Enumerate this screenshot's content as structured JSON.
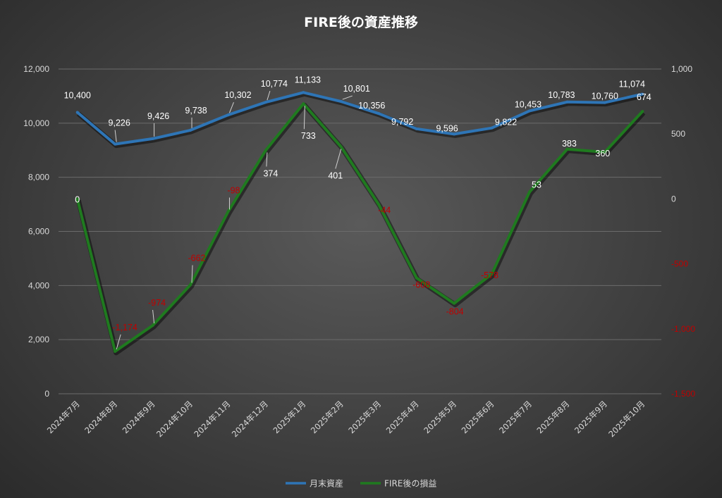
{
  "chart_data": {
    "type": "line",
    "title": "FIRE後の資産推移",
    "categories": [
      "2024年7月",
      "2024年8月",
      "2024年9月",
      "2024年10月",
      "2024年11月",
      "2024年12月",
      "2025年1月",
      "2025年2月",
      "2025年3月",
      "2025年4月",
      "2025年5月",
      "2025年6月",
      "2025年7月",
      "2025年8月",
      "2025年9月",
      "2025年10月"
    ],
    "series": [
      {
        "name": "月末資産",
        "axis": "left",
        "color": "#2e75b6",
        "values": [
          10400,
          9226,
          9426,
          9738,
          10302,
          10774,
          11133,
          10801,
          10356,
          9792,
          9596,
          9822,
          10453,
          10783,
          10760,
          11074
        ],
        "labels": [
          "10,400",
          "9,226",
          "9,426",
          "9,738",
          "10,302",
          "10,774",
          "11,133",
          "10,801",
          "10,356",
          "9,792",
          "9,596",
          "9,822",
          "10,453",
          "10,783",
          "10,760",
          "11,074"
        ]
      },
      {
        "name": "FIRE後の損益",
        "axis": "right",
        "color": "#1f7a1f",
        "values": [
          0,
          -1174,
          -974,
          -662,
          -98,
          374,
          733,
          401,
          -44,
          -608,
          -804,
          -578,
          53,
          383,
          360,
          674
        ],
        "labels": [
          "0",
          "-1,174",
          "-974",
          "-662",
          "-98",
          "374",
          "733",
          "401",
          "-44",
          "-608",
          "-804",
          "-578",
          "53",
          "383",
          "360",
          "674"
        ]
      }
    ],
    "left_axis": {
      "min": 0,
      "max": 12000,
      "ticks": [
        "0",
        "2,000",
        "4,000",
        "6,000",
        "8,000",
        "10,000",
        "12,000"
      ]
    },
    "right_axis": {
      "min": -1500,
      "max": 1000,
      "ticks": [
        "-1,500",
        "-1,000",
        "-500",
        "0",
        "500",
        "1,000"
      ]
    },
    "grid": true,
    "legend_position": "bottom"
  }
}
